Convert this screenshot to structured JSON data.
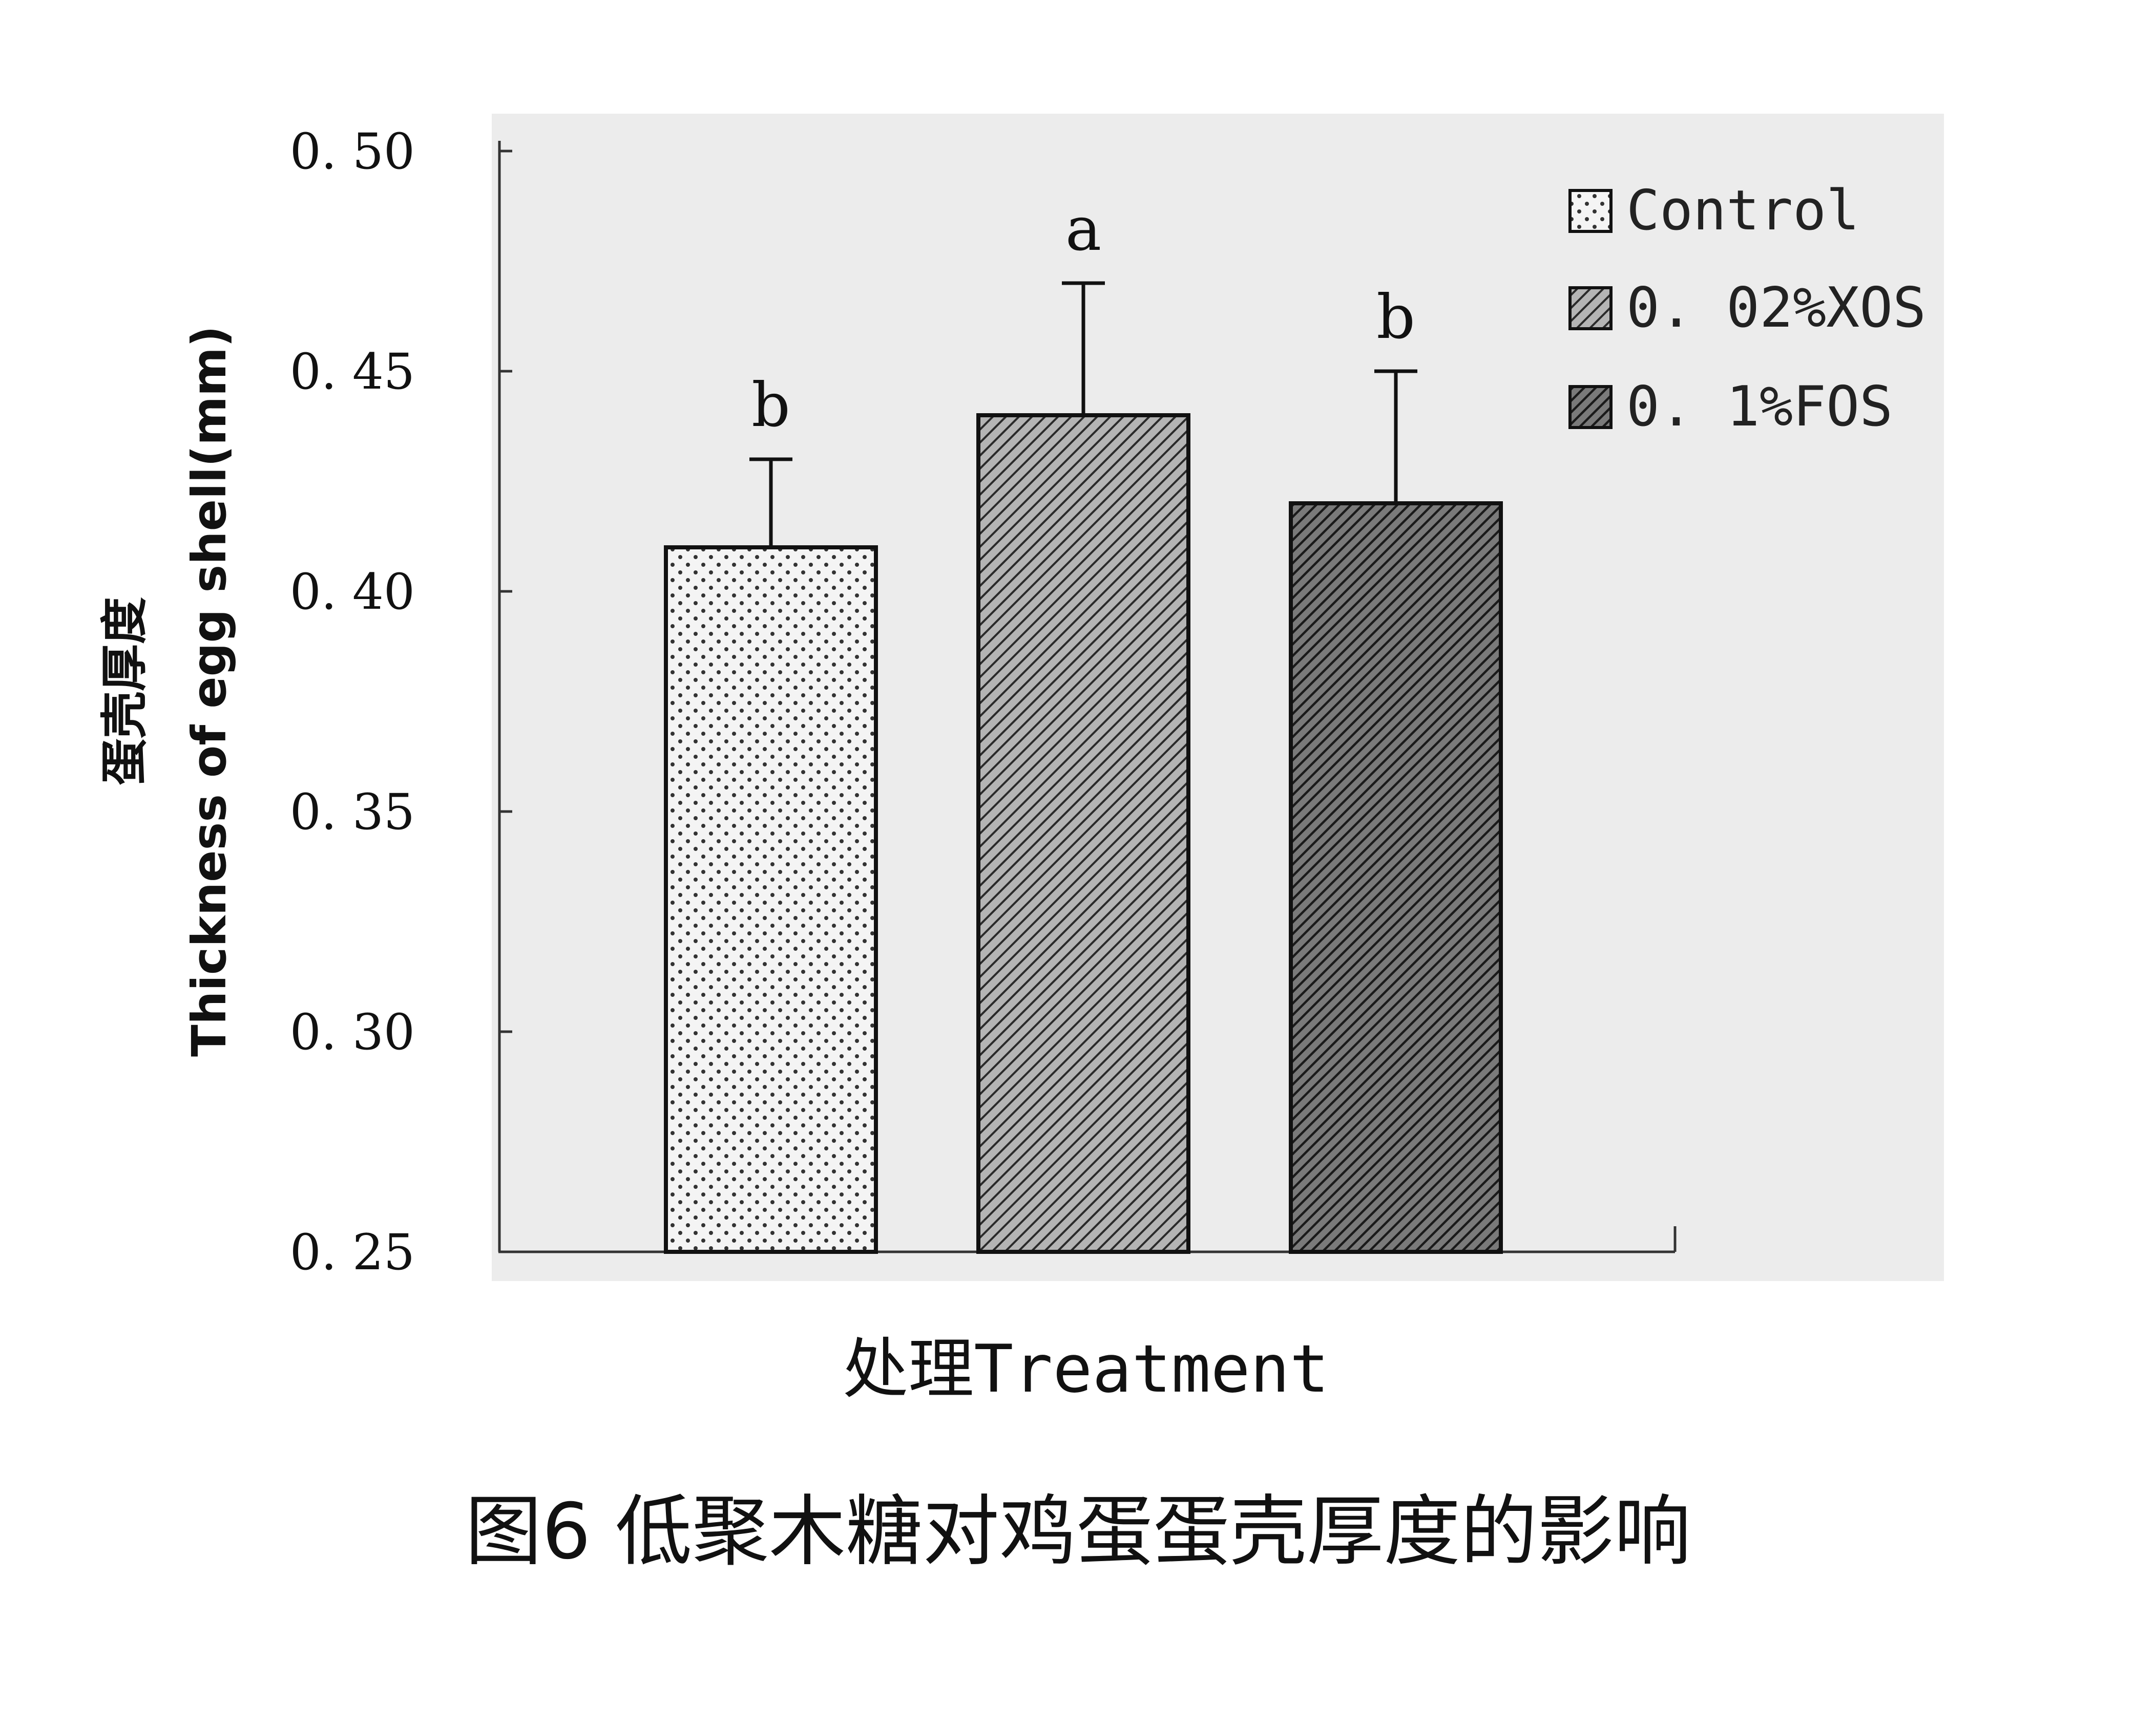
{
  "caption": "图6 低聚木糖对鸡蛋蛋壳厚度的影响",
  "chart_data": {
    "type": "bar",
    "categories": [
      "Control",
      "0. 02%XOS",
      "0. 1%FOS"
    ],
    "values": [
      0.41,
      0.44,
      0.42
    ],
    "errors": [
      0.02,
      0.03,
      0.03
    ],
    "significance": [
      "b",
      "a",
      "b"
    ],
    "patterns": [
      "dots",
      "hatch-light",
      "hatch-dark"
    ],
    "legend": [
      "Control",
      "0. 02%XOS",
      "0. 1%FOS"
    ],
    "legend_position": "top-right",
    "title": "",
    "xlabel": "处理Treatment",
    "ylabel_cn": "蛋壳厚度",
    "ylabel_en": "Thickness of egg shell(mm)",
    "ylim": [
      0.25,
      0.5
    ],
    "yticks": [
      "0. 25",
      "0. 30",
      "0. 35",
      "0. 40",
      "0. 45",
      "0. 50"
    ],
    "ytick_values": [
      0.25,
      0.3,
      0.35,
      0.4,
      0.45,
      0.5
    ],
    "grid": false,
    "colors": {
      "background": "#ececec",
      "bar_edge": "#111111",
      "light_fill": "#f2f2f2",
      "mid_fill": "#8e8e8e",
      "dark_fill": "#5a5a5a"
    }
  }
}
